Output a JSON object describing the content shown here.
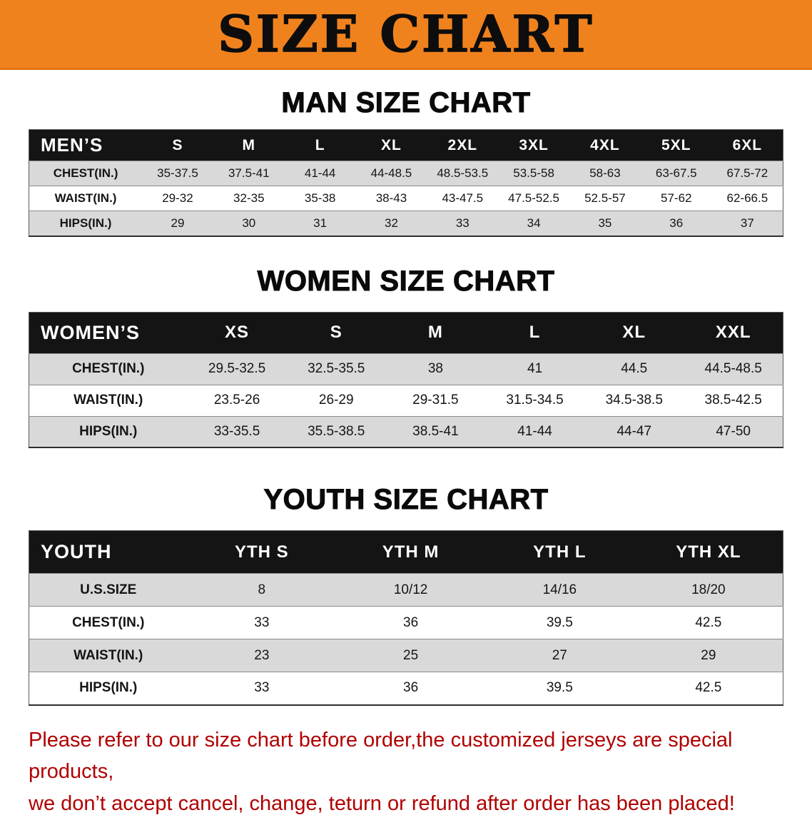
{
  "banner": {
    "title": "SIZE CHART"
  },
  "sections": [
    {
      "heading": "MAN SIZE CHART",
      "table": {
        "corner_label": "MEN’S",
        "columns": [
          "S",
          "M",
          "L",
          "XL",
          "2XL",
          "3XL",
          "4XL",
          "5XL",
          "6XL"
        ],
        "rows": [
          {
            "label": "CHEST(IN.)",
            "values": [
              "35-37.5",
              "37.5-41",
              "41-44",
              "44-48.5",
              "48.5-53.5",
              "53.5-58",
              "58-63",
              "63-67.5",
              "67.5-72"
            ]
          },
          {
            "label": "WAIST(IN.)",
            "values": [
              "29-32",
              "32-35",
              "35-38",
              "38-43",
              "43-47.5",
              "47.5-52.5",
              "52.5-57",
              "57-62",
              "62-66.5"
            ]
          },
          {
            "label": "HIPS(IN.)",
            "values": [
              "29",
              "30",
              "31",
              "32",
              "33",
              "34",
              "35",
              "36",
              "37"
            ]
          }
        ]
      }
    },
    {
      "heading": "WOMEN SIZE CHART",
      "table": {
        "corner_label": "WOMEN’S",
        "columns": [
          "XS",
          "S",
          "M",
          "L",
          "XL",
          "XXL"
        ],
        "rows": [
          {
            "label": "CHEST(IN.)",
            "values": [
              "29.5-32.5",
              "32.5-35.5",
              "38",
              "41",
              "44.5",
              "44.5-48.5"
            ]
          },
          {
            "label": "WAIST(IN.)",
            "values": [
              "23.5-26",
              "26-29",
              "29-31.5",
              "31.5-34.5",
              "34.5-38.5",
              "38.5-42.5"
            ]
          },
          {
            "label": "HIPS(IN.)",
            "values": [
              "33-35.5",
              "35.5-38.5",
              "38.5-41",
              "41-44",
              "44-47",
              "47-50"
            ]
          }
        ]
      }
    },
    {
      "heading": "YOUTH SIZE CHART",
      "table": {
        "corner_label": "YOUTH",
        "columns": [
          "YTH S",
          "YTH M",
          "YTH L",
          "YTH XL"
        ],
        "rows": [
          {
            "label": "U.S.SIZE",
            "values": [
              "8",
              "10/12",
              "14/16",
              "18/20"
            ]
          },
          {
            "label": "CHEST(IN.)",
            "values": [
              "33",
              "36",
              "39.5",
              "42.5"
            ]
          },
          {
            "label": "WAIST(IN.)",
            "values": [
              "23",
              "25",
              "27",
              "29"
            ]
          },
          {
            "label": "HIPS(IN.)",
            "values": [
              "33",
              "36",
              "39.5",
              "42.5"
            ]
          }
        ]
      }
    }
  ],
  "footer": {
    "line1": "Please refer to our size chart before order,the customized jerseys are special products,",
    "line2": "we don’t accept cancel, change, teturn or refund after order has been placed!"
  },
  "colors": {
    "banner_bg": "#f0821e",
    "header_bg": "#141414",
    "row_alt_bg": "#d9d9d9",
    "note_color": "#b10000"
  }
}
